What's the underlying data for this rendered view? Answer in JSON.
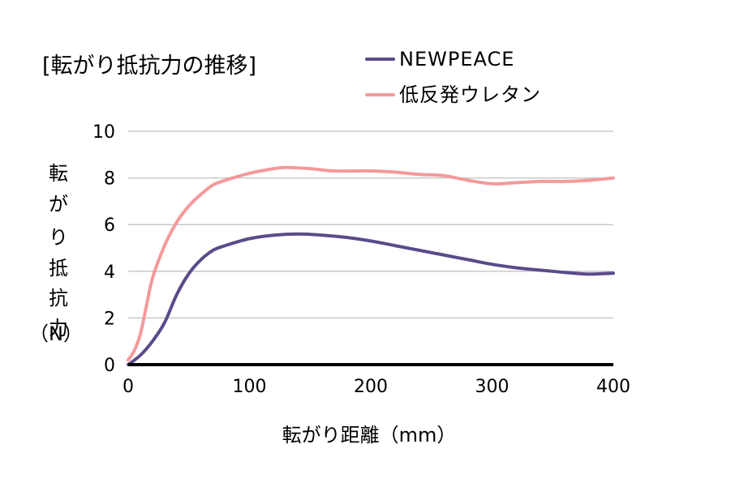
{
  "chart_data": {
    "type": "line",
    "title": "[転がり抵抗力の推移]",
    "xlabel": "転がり距離（mm）",
    "ylabel": [
      "転",
      "が",
      "り",
      "抵",
      "抗",
      "力",
      "（N）"
    ],
    "xlim": [
      0,
      400
    ],
    "ylim": [
      0,
      10
    ],
    "x_ticks": [
      "0",
      "100",
      "200",
      "300",
      "400"
    ],
    "y_ticks": [
      "0",
      "2",
      "4",
      "6",
      "8",
      "10"
    ],
    "grid": true,
    "legend_position": "top-right",
    "series": [
      {
        "name": "NEWPEACE",
        "color": "#5b4b8a",
        "x": [
          0,
          10,
          20,
          30,
          40,
          50,
          60,
          70,
          80,
          100,
          120,
          140,
          160,
          180,
          200,
          220,
          240,
          260,
          280,
          300,
          320,
          340,
          360,
          380,
          400
        ],
        "y": [
          0.0,
          0.4,
          1.0,
          1.8,
          3.0,
          3.9,
          4.5,
          4.9,
          5.1,
          5.4,
          5.55,
          5.6,
          5.55,
          5.45,
          5.3,
          5.1,
          4.9,
          4.7,
          4.5,
          4.3,
          4.15,
          4.05,
          3.95,
          3.88,
          3.92
        ]
      },
      {
        "name": "低反発ウレタン",
        "color": "#f4999a",
        "x": [
          0,
          5,
          10,
          15,
          20,
          30,
          40,
          50,
          60,
          70,
          80,
          100,
          120,
          130,
          150,
          170,
          200,
          220,
          240,
          260,
          280,
          300,
          320,
          340,
          360,
          380,
          400
        ],
        "y": [
          0.2,
          0.6,
          1.3,
          2.5,
          3.7,
          5.1,
          6.1,
          6.8,
          7.3,
          7.7,
          7.9,
          8.2,
          8.4,
          8.45,
          8.4,
          8.3,
          8.3,
          8.25,
          8.15,
          8.1,
          7.9,
          7.75,
          7.8,
          7.85,
          7.85,
          7.9,
          8.0
        ]
      }
    ]
  }
}
